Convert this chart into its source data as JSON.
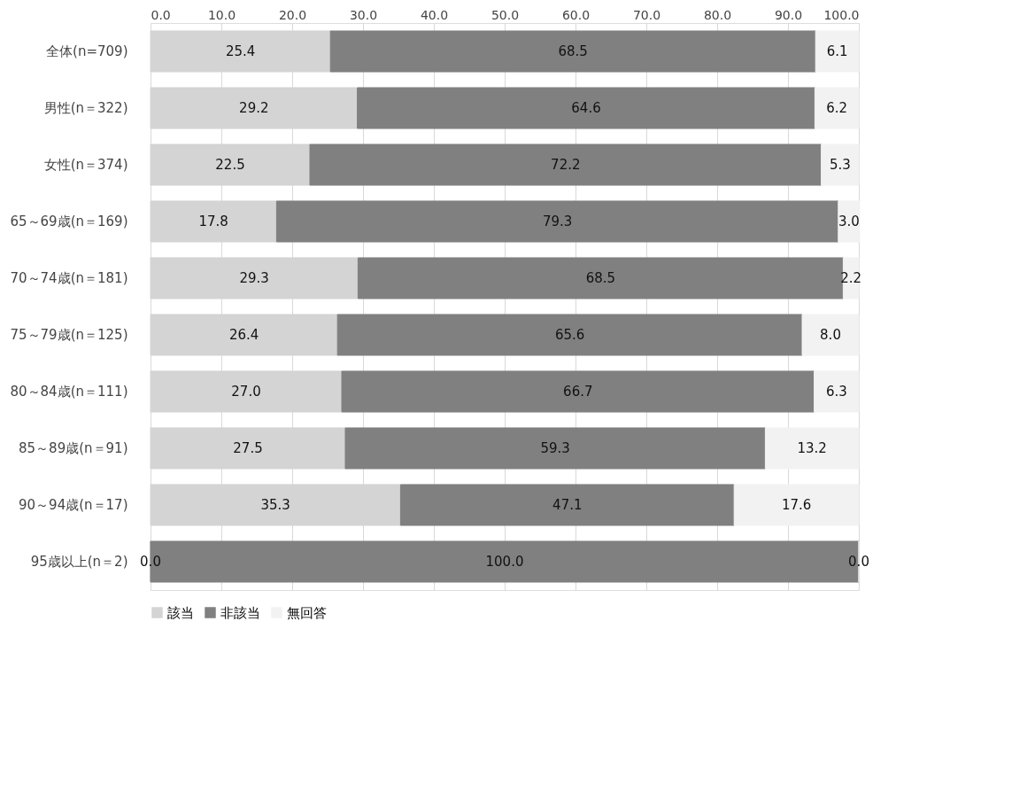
{
  "chart_data": {
    "type": "bar",
    "orientation": "horizontal",
    "stacked": true,
    "categories": [
      "全体(n=709)",
      "男性(n＝322)",
      "女性(n＝374)",
      "65～69歳(n＝169)",
      "70～74歳(n＝181)",
      "75～79歳(n＝125)",
      "80～84歳(n＝111)",
      "85～89歳(n＝91)",
      "90～94歳(n＝17)",
      "95歳以上(n＝2)"
    ],
    "series": [
      {
        "name": "該当",
        "color": "#d4d4d4",
        "values": [
          25.4,
          29.2,
          22.5,
          17.8,
          29.3,
          26.4,
          27.0,
          27.5,
          35.3,
          0.0
        ],
        "value_labels": [
          "25.4",
          "29.2",
          "22.5",
          "17.8",
          "29.3",
          "26.4",
          "27.0",
          "27.5",
          "35.3",
          "0.0"
        ]
      },
      {
        "name": "非該当",
        "color": "#808080",
        "values": [
          68.5,
          64.6,
          72.2,
          79.3,
          68.5,
          65.6,
          66.7,
          59.3,
          47.1,
          100.0
        ],
        "value_labels": [
          "68.5",
          "64.6",
          "72.2",
          "79.3",
          "68.5",
          "65.6",
          "66.7",
          "59.3",
          "47.1",
          "100.0"
        ]
      },
      {
        "name": "無回答",
        "color": "#f2f2f2",
        "values": [
          6.1,
          6.2,
          5.3,
          3.0,
          2.2,
          8.0,
          6.3,
          13.2,
          17.6,
          0.0
        ],
        "value_labels": [
          "6.1",
          "6.2",
          "5.3",
          "3.0",
          "2.2",
          "8.0",
          "6.3",
          "13.2",
          "17.6",
          "0.0"
        ]
      }
    ],
    "xlim": [
      0,
      100
    ],
    "xticks": [
      {
        "value": 0,
        "label": "0.0"
      },
      {
        "value": 10,
        "label": "10.0"
      },
      {
        "value": 20,
        "label": "20.0"
      },
      {
        "value": 30,
        "label": "30.0"
      },
      {
        "value": 40,
        "label": "40.0"
      },
      {
        "value": 50,
        "label": "50.0"
      },
      {
        "value": 60,
        "label": "60.0"
      },
      {
        "value": 70,
        "label": "70.0"
      },
      {
        "value": 80,
        "label": "80.0"
      },
      {
        "value": 90,
        "label": "90.0"
      },
      {
        "value": 100,
        "label": "100.0"
      }
    ],
    "grid": "x",
    "legend": "bottom"
  }
}
